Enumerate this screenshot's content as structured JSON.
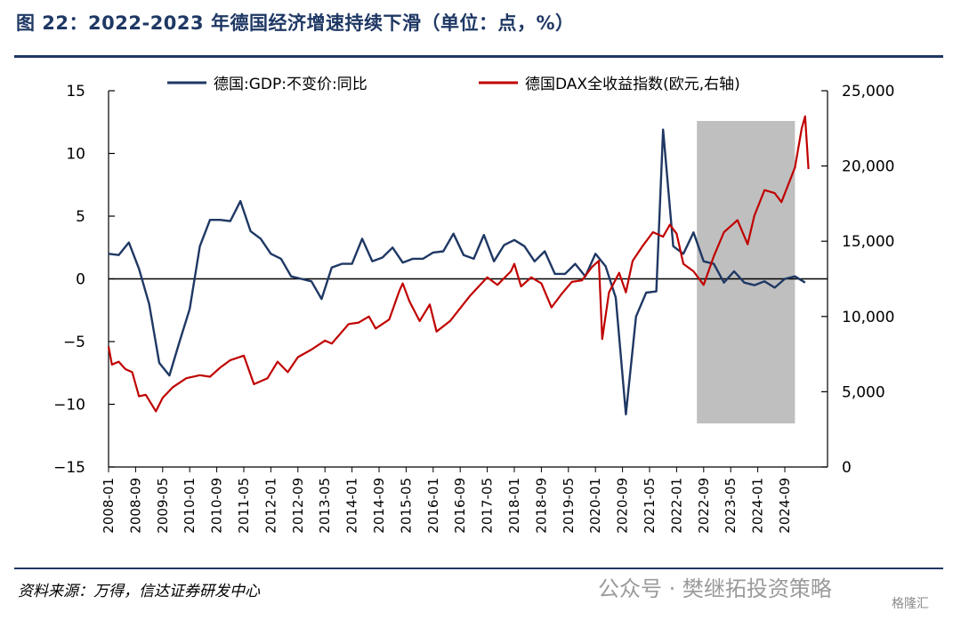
{
  "title": "图 22：2022-2023 年德国经济增速持续下滑（单位：点，%）",
  "source": "资料来源：万得，信达证券研发中心",
  "watermark": "公众号 · 樊继拓投资策略",
  "logo_text": "格隆汇",
  "chart_data": {
    "type": "line",
    "title": "",
    "xlabel": "",
    "ylabel": "",
    "ylim": [
      -15,
      15
    ],
    "y_ticks": [
      15,
      10,
      5,
      0,
      -5,
      -10,
      -15
    ],
    "y_tick_labels": [
      "15",
      "10",
      "5",
      "0",
      "−5",
      "−10",
      "−15"
    ],
    "y2lim": [
      0,
      25000
    ],
    "y2_ticks": [
      25000,
      20000,
      15000,
      10000,
      5000,
      0
    ],
    "y2_tick_labels": [
      "25,000",
      "20,000",
      "15,000",
      "10,000",
      "5,000",
      "0"
    ],
    "x_tick_labels": [
      "2008-01",
      "2008-09",
      "2009-05",
      "2010-01",
      "2010-09",
      "2011-05",
      "2012-01",
      "2012-09",
      "2013-05",
      "2014-01",
      "2014-09",
      "2015-05",
      "2016-01",
      "2016-09",
      "2017-05",
      "2018-01",
      "2018-09",
      "2019-05",
      "2020-01",
      "2020-09",
      "2021-05",
      "2022-01",
      "2022-09",
      "2023-05",
      "2024-01",
      "2024-09"
    ],
    "shaded_region": {
      "from": "2022-07",
      "to": "2024-12"
    },
    "legend_placement": "top",
    "grid": false,
    "series": [
      {
        "name": "德国:GDP:不变价:同比",
        "axis": "left",
        "color": "#1f3864",
        "points": [
          [
            "2008-01",
            2.0
          ],
          [
            "2008-04",
            1.9
          ],
          [
            "2008-07",
            2.9
          ],
          [
            "2008-10",
            0.8
          ],
          [
            "2009-01",
            -2.0
          ],
          [
            "2009-04",
            -6.7
          ],
          [
            "2009-07",
            -7.7
          ],
          [
            "2009-10",
            -5.0
          ],
          [
            "2010-01",
            -2.4
          ],
          [
            "2010-04",
            2.6
          ],
          [
            "2010-07",
            4.7
          ],
          [
            "2010-10",
            4.7
          ],
          [
            "2011-01",
            4.6
          ],
          [
            "2011-04",
            6.2
          ],
          [
            "2011-07",
            3.8
          ],
          [
            "2011-10",
            3.2
          ],
          [
            "2012-01",
            2.0
          ],
          [
            "2012-04",
            1.6
          ],
          [
            "2012-07",
            0.2
          ],
          [
            "2012-10",
            0.0
          ],
          [
            "2013-01",
            -0.2
          ],
          [
            "2013-04",
            -1.6
          ],
          [
            "2013-07",
            0.9
          ],
          [
            "2013-10",
            1.2
          ],
          [
            "2014-01",
            1.2
          ],
          [
            "2014-04",
            3.2
          ],
          [
            "2014-07",
            1.4
          ],
          [
            "2014-10",
            1.7
          ],
          [
            "2015-01",
            2.5
          ],
          [
            "2015-04",
            1.3
          ],
          [
            "2015-07",
            1.6
          ],
          [
            "2015-10",
            1.6
          ],
          [
            "2016-01",
            2.1
          ],
          [
            "2016-04",
            2.2
          ],
          [
            "2016-07",
            3.6
          ],
          [
            "2016-10",
            1.9
          ],
          [
            "2017-01",
            1.6
          ],
          [
            "2017-04",
            3.5
          ],
          [
            "2017-07",
            1.4
          ],
          [
            "2017-10",
            2.7
          ],
          [
            "2018-01",
            3.1
          ],
          [
            "2018-04",
            2.6
          ],
          [
            "2018-07",
            1.4
          ],
          [
            "2018-10",
            2.2
          ],
          [
            "2019-01",
            0.4
          ],
          [
            "2019-04",
            0.4
          ],
          [
            "2019-07",
            1.2
          ],
          [
            "2019-10",
            0.2
          ],
          [
            "2020-01",
            2.0
          ],
          [
            "2020-04",
            1.0
          ],
          [
            "2020-07",
            -1.5
          ],
          [
            "2020-10",
            -10.8
          ],
          [
            "2021-01",
            -3.0
          ],
          [
            "2021-04",
            -1.1
          ],
          [
            "2021-07",
            -1.0
          ],
          [
            "2021-09",
            11.9
          ],
          [
            "2021-12",
            2.6
          ],
          [
            "2022-03",
            2.0
          ],
          [
            "2022-06",
            3.7
          ],
          [
            "2022-09",
            1.4
          ],
          [
            "2022-12",
            1.2
          ],
          [
            "2023-03",
            -0.3
          ],
          [
            "2023-06",
            0.6
          ],
          [
            "2023-09",
            -0.3
          ],
          [
            "2023-12",
            -0.5
          ],
          [
            "2024-03",
            -0.2
          ],
          [
            "2024-06",
            -0.7
          ],
          [
            "2024-09",
            0.0
          ],
          [
            "2024-12",
            0.2
          ],
          [
            "2025-03",
            -0.3
          ]
        ]
      },
      {
        "name": "德国DAX全收益指数(欧元,右轴)",
        "axis": "right",
        "color": "#c00000",
        "points": [
          [
            "2008-01",
            8000
          ],
          [
            "2008-02",
            6800
          ],
          [
            "2008-04",
            7000
          ],
          [
            "2008-06",
            6500
          ],
          [
            "2008-08",
            6300
          ],
          [
            "2008-10",
            4700
          ],
          [
            "2008-12",
            4800
          ],
          [
            "2009-03",
            3700
          ],
          [
            "2009-05",
            4600
          ],
          [
            "2009-08",
            5300
          ],
          [
            "2009-12",
            5900
          ],
          [
            "2010-04",
            6100
          ],
          [
            "2010-07",
            6000
          ],
          [
            "2010-10",
            6600
          ],
          [
            "2011-01",
            7100
          ],
          [
            "2011-05",
            7400
          ],
          [
            "2011-08",
            5500
          ],
          [
            "2011-12",
            5900
          ],
          [
            "2012-03",
            7000
          ],
          [
            "2012-06",
            6300
          ],
          [
            "2012-09",
            7300
          ],
          [
            "2013-01",
            7800
          ],
          [
            "2013-05",
            8400
          ],
          [
            "2013-07",
            8200
          ],
          [
            "2013-12",
            9500
          ],
          [
            "2014-03",
            9600
          ],
          [
            "2014-06",
            10000
          ],
          [
            "2014-08",
            9200
          ],
          [
            "2014-12",
            9800
          ],
          [
            "2015-03",
            11700
          ],
          [
            "2015-04",
            12200
          ],
          [
            "2015-06",
            11000
          ],
          [
            "2015-09",
            9700
          ],
          [
            "2015-12",
            10800
          ],
          [
            "2016-02",
            9000
          ],
          [
            "2016-06",
            9700
          ],
          [
            "2016-12",
            11400
          ],
          [
            "2017-05",
            12600
          ],
          [
            "2017-08",
            12100
          ],
          [
            "2017-12",
            13000
          ],
          [
            "2018-01",
            13500
          ],
          [
            "2018-03",
            12000
          ],
          [
            "2018-06",
            12600
          ],
          [
            "2018-09",
            12200
          ],
          [
            "2018-12",
            10600
          ],
          [
            "2019-03",
            11500
          ],
          [
            "2019-06",
            12300
          ],
          [
            "2019-09",
            12400
          ],
          [
            "2019-12",
            13300
          ],
          [
            "2020-02",
            13700
          ],
          [
            "2020-03",
            8500
          ],
          [
            "2020-05",
            11600
          ],
          [
            "2020-08",
            12900
          ],
          [
            "2020-10",
            11600
          ],
          [
            "2020-12",
            13700
          ],
          [
            "2021-03",
            14700
          ],
          [
            "2021-06",
            15600
          ],
          [
            "2021-09",
            15300
          ],
          [
            "2021-11",
            16100
          ],
          [
            "2022-01",
            15500
          ],
          [
            "2022-03",
            13500
          ],
          [
            "2022-06",
            13000
          ],
          [
            "2022-09",
            12100
          ],
          [
            "2022-12",
            14000
          ],
          [
            "2023-03",
            15600
          ],
          [
            "2023-07",
            16400
          ],
          [
            "2023-10",
            14800
          ],
          [
            "2023-12",
            16700
          ],
          [
            "2024-03",
            18400
          ],
          [
            "2024-06",
            18200
          ],
          [
            "2024-08",
            17600
          ],
          [
            "2024-12",
            19900
          ],
          [
            "2025-02",
            22500
          ],
          [
            "2025-03",
            23300
          ],
          [
            "2025-04",
            19800
          ]
        ]
      }
    ]
  }
}
